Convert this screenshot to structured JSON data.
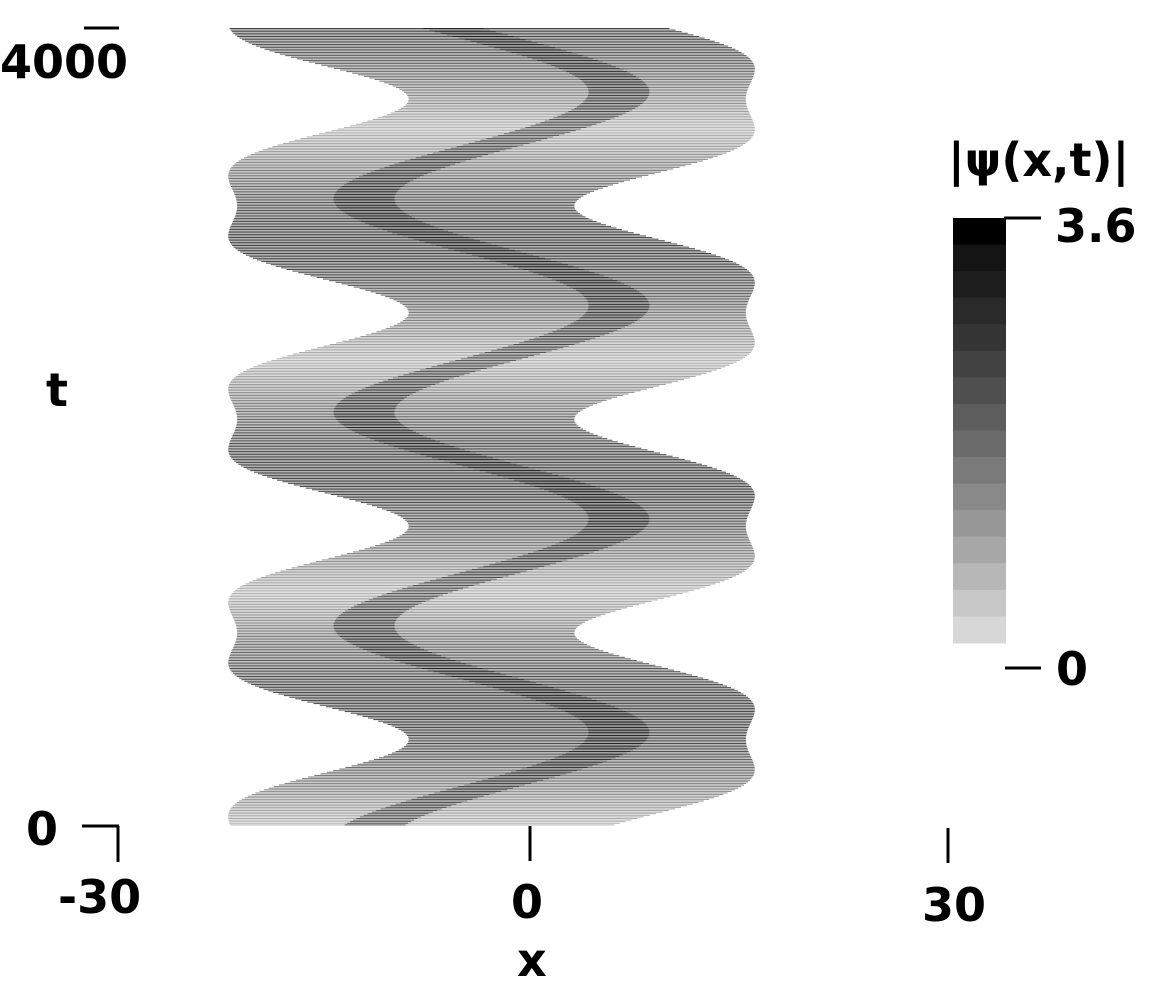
{
  "chart_data": {
    "type": "heatmap",
    "title": "",
    "xlabel": "x",
    "ylabel": "t",
    "xlim": [
      -30,
      30
    ],
    "ylim": [
      0,
      4000
    ],
    "x_ticks": [
      {
        "value": -30,
        "label": "-30"
      },
      {
        "value": 0,
        "label": "0"
      },
      {
        "value": 30,
        "label": "30"
      }
    ],
    "y_ticks": [
      {
        "value": 0,
        "label": "0"
      },
      {
        "value": 4000,
        "label": "4000"
      }
    ],
    "colorbar": {
      "title": "|ψ(x,t)|",
      "min": 0,
      "max": 3.6,
      "tick_labels": [
        {
          "value": 3.6,
          "label": "3.6"
        },
        {
          "value": 0,
          "label": "0"
        }
      ],
      "levels": 16,
      "colors": [
        "#000000",
        "#141414",
        "#1e1e1e",
        "#2a2a2a",
        "#353535",
        "#424242",
        "#4f4f4f",
        "#5d5d5d",
        "#6b6b6b",
        "#7a7a7a",
        "#898989",
        "#989898",
        "#a7a7a7",
        "#b7b7b7",
        "#c7c7c7",
        "#d7d7d7"
      ]
    },
    "field": {
      "description_units": "oscillating localized density profile vs t",
      "period_t": 1070,
      "amplitude_x": 6.2,
      "center_x": -3,
      "width_x": 13,
      "peak_level": 3.0
    }
  }
}
